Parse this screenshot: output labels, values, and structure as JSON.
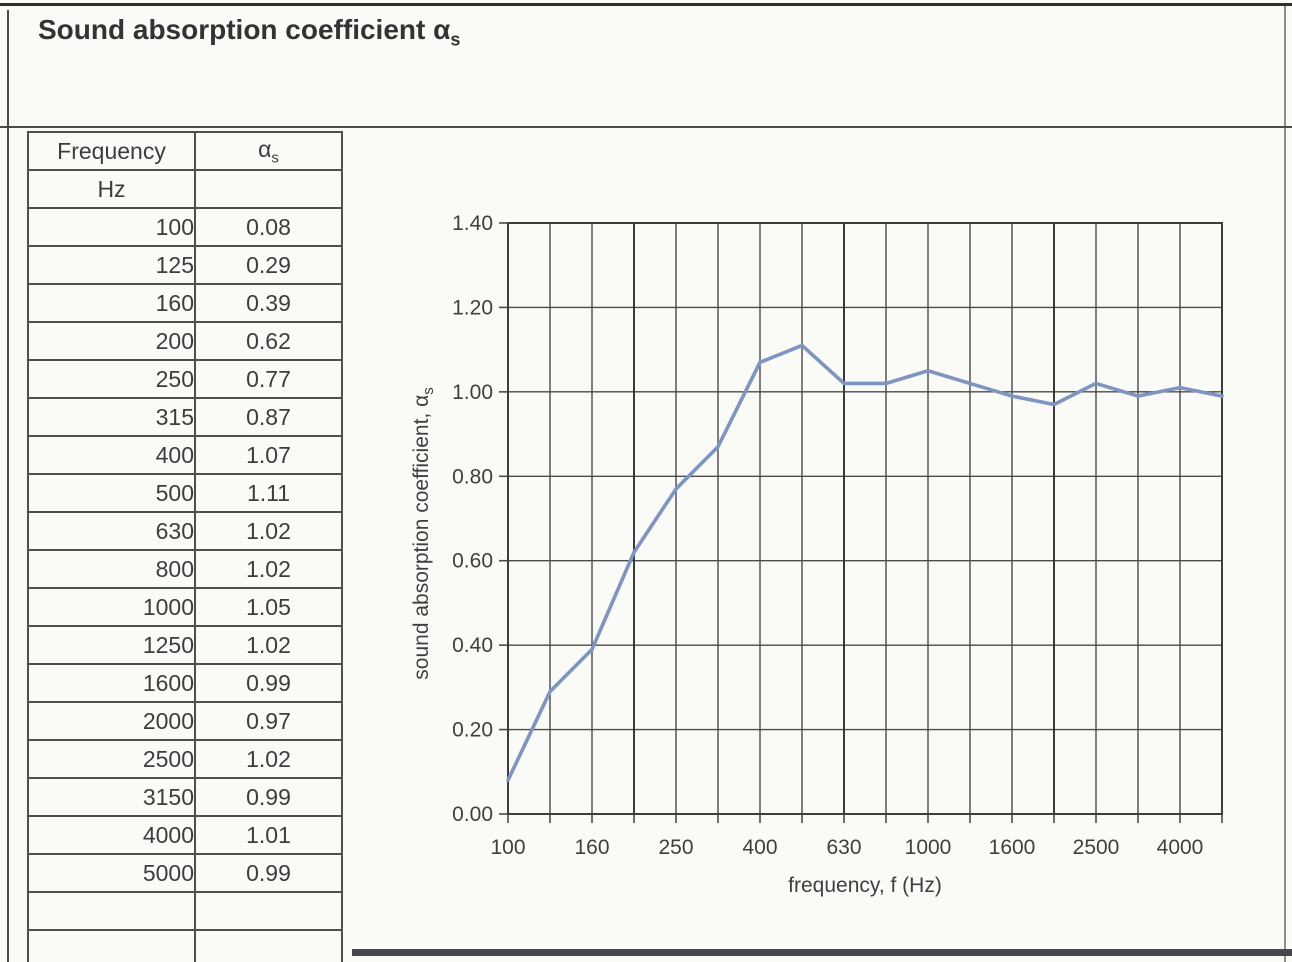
{
  "page": {
    "title_main": "Sound absorption coefficient ",
    "title_symbol": "α",
    "title_symbol_sub": "s"
  },
  "table": {
    "col1_header": "Frequency",
    "col2_header_symbol": "α",
    "col2_header_sub": "s",
    "unit_label": "Hz",
    "empty_rows": 2,
    "rows": [
      {
        "frequency": "100",
        "alpha": "0.08"
      },
      {
        "frequency": "125",
        "alpha": "0.29"
      },
      {
        "frequency": "160",
        "alpha": "0.39"
      },
      {
        "frequency": "200",
        "alpha": "0.62"
      },
      {
        "frequency": "250",
        "alpha": "0.77"
      },
      {
        "frequency": "315",
        "alpha": "0.87"
      },
      {
        "frequency": "400",
        "alpha": "1.07"
      },
      {
        "frequency": "500",
        "alpha": "1.11"
      },
      {
        "frequency": "630",
        "alpha": "1.02"
      },
      {
        "frequency": "800",
        "alpha": "1.02"
      },
      {
        "frequency": "1000",
        "alpha": "1.05"
      },
      {
        "frequency": "1250",
        "alpha": "1.02"
      },
      {
        "frequency": "1600",
        "alpha": "0.99"
      },
      {
        "frequency": "2000",
        "alpha": "0.97"
      },
      {
        "frequency": "2500",
        "alpha": "1.02"
      },
      {
        "frequency": "3150",
        "alpha": "0.99"
      },
      {
        "frequency": "4000",
        "alpha": "1.01"
      },
      {
        "frequency": "5000",
        "alpha": "0.99"
      }
    ]
  },
  "chart_data": {
    "type": "line",
    "title": "",
    "xlabel": "frequency, f (Hz)",
    "ylabel": "sound absorption coefficient, αs",
    "ylabel_main": "sound absorption coefficient, α",
    "ylabel_sub": "s",
    "categories": [
      100,
      125,
      160,
      200,
      250,
      315,
      400,
      500,
      630,
      800,
      1000,
      1250,
      1600,
      2000,
      2500,
      3150,
      4000,
      5000
    ],
    "values": [
      0.08,
      0.29,
      0.39,
      0.62,
      0.77,
      0.87,
      1.07,
      1.11,
      1.02,
      1.02,
      1.05,
      1.02,
      0.99,
      0.97,
      1.02,
      0.99,
      1.01,
      0.99
    ],
    "y_tick_labels": [
      "0.00",
      "0.20",
      "0.40",
      "0.60",
      "0.80",
      "1.00",
      "1.20",
      "1.40"
    ],
    "x_tick_labels": [
      "100",
      "160",
      "250",
      "400",
      "630",
      "1000",
      "1600",
      "2500",
      "4000"
    ],
    "x_label_indices": [
      0,
      2,
      4,
      6,
      8,
      10,
      12,
      14,
      16
    ],
    "ylim": [
      0,
      1.4
    ],
    "grid": true,
    "legend": false,
    "line_color": "#7e94c1",
    "grid_color": "#4a4a4a"
  }
}
